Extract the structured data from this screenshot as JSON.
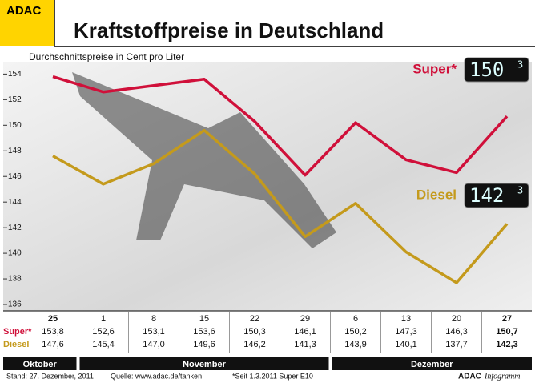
{
  "logo": "ADAC",
  "chart_data": {
    "type": "line",
    "title": "Kraftstoffpreise in Deutschland",
    "subtitle": "Durchschnittspreise in Cent pro Liter",
    "categories": [
      "25",
      "1",
      "8",
      "15",
      "22",
      "29",
      "6",
      "13",
      "20",
      "27"
    ],
    "months": [
      "Oktober",
      "November",
      "Dezember"
    ],
    "series": [
      {
        "name": "Super*",
        "color": "#d0103a",
        "values": [
          153.8,
          152.6,
          153.1,
          153.6,
          150.3,
          146.1,
          150.2,
          147.3,
          146.3,
          150.7
        ],
        "value_labels": [
          "153,8",
          "152,6",
          "153,1",
          "153,6",
          "150,3",
          "146,1",
          "150,2",
          "147,3",
          "146,3",
          "150,7"
        ],
        "display": {
          "digits": "150",
          "exponent": "3"
        }
      },
      {
        "name": "Diesel",
        "color": "#c49a1c",
        "values": [
          147.6,
          145.4,
          147.0,
          149.6,
          146.2,
          141.3,
          143.9,
          140.1,
          137.7,
          142.3
        ],
        "value_labels": [
          "147,6",
          "145,4",
          "147,0",
          "149,6",
          "146,2",
          "141,3",
          "143,9",
          "140,1",
          "137,7",
          "142,3"
        ],
        "display": {
          "digits": "142",
          "exponent": "3"
        }
      }
    ],
    "ylim": [
      135.5,
      154.9
    ],
    "yticks": [
      136,
      138,
      140,
      142,
      144,
      146,
      148,
      150,
      152,
      154
    ],
    "grid": false
  },
  "footer": {
    "date": "Stand: 27. Dezember, 2011",
    "source": "Quelle: www.adac.de/tanken",
    "note": "*Seit 1.3.2011 Super E10",
    "brand": "ADAC",
    "brand_suffix": "Infogramm"
  }
}
